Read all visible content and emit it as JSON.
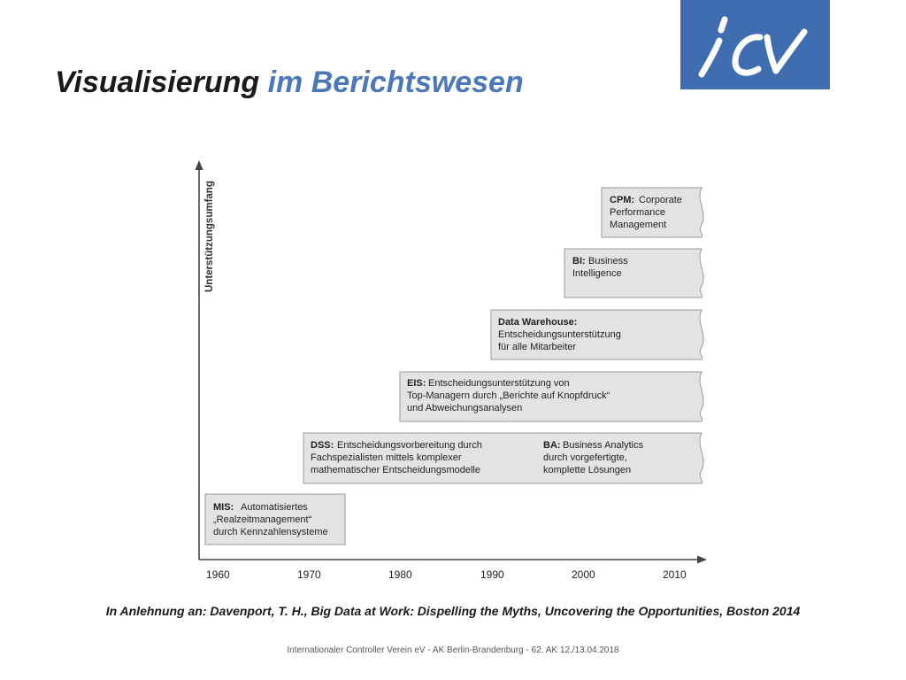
{
  "title": {
    "main": "Visualisierung",
    "accent": "im Berichtswesen"
  },
  "logo": {
    "text": "icv",
    "bg_color": "#3f6db0"
  },
  "y_axis_label": "Unterstützungsumfang",
  "x_ticks": [
    "1960",
    "1970",
    "1980",
    "1990",
    "2000",
    "2010"
  ],
  "boxes": [
    {
      "id": "mis",
      "bold": "MIS:",
      "lines": [
        "Automatisiertes",
        "„Realzeitmanagement“",
        "durch Kennzahlensysteme"
      ]
    },
    {
      "id": "dss",
      "bold": "DSS:",
      "lines": [
        "Entscheidungsvorbereitung durch",
        "Fachspezialisten mittels komplexer",
        "mathematischer Entscheidungsmodelle"
      ],
      "extra": {
        "bold": "BA:",
        "lines": [
          "Business Analytics",
          "durch vorgefertigte,",
          "komplette Lösungen"
        ]
      }
    },
    {
      "id": "eis",
      "bold": "EIS:",
      "lines": [
        "Entscheidungsunterstützung von",
        "Top-Managern durch „Berichte auf Knopfdruck“",
        "und Abweichungsanalysen"
      ]
    },
    {
      "id": "dwh",
      "bold": "Data Warehouse:",
      "lines": [
        "",
        "Entscheidungsunterstützung",
        "für alle Mitarbeiter"
      ]
    },
    {
      "id": "bi",
      "bold": "BI:",
      "lines": [
        "Business",
        "Intelligence"
      ]
    },
    {
      "id": "cpm",
      "bold": "CPM:",
      "lines": [
        "Corporate",
        "Performance",
        "Management"
      ]
    }
  ],
  "colors": {
    "box_fill": "#e3e3e3",
    "box_stroke": "#9a9a9a",
    "accent": "#4a78b8"
  },
  "source": "In Anlehnung an: Davenport, T. H., Big Data at Work: Dispelling the Myths, Uncovering the Opportunities, Boston 2014",
  "footer": "Internationaler Controller Verein eV - AK Berlin-Brandenburg - 62. AK 12./13.04.2018"
}
